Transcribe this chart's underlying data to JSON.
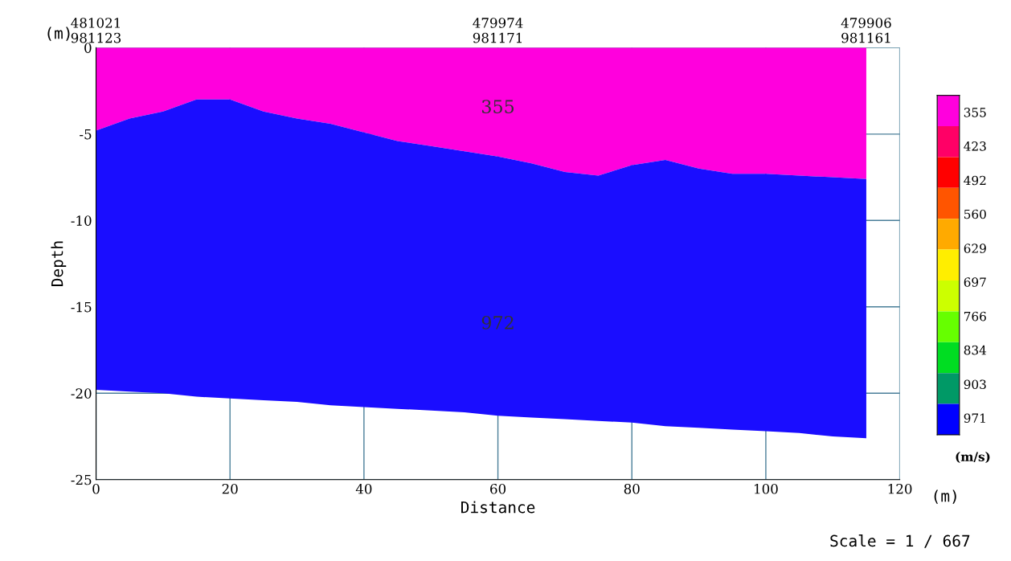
{
  "chart_data": {
    "type": "area",
    "stacked": true,
    "xlabel": "Distance",
    "ylabel": "Depth",
    "clabel": "(m/s)",
    "x": [
      0,
      5,
      10,
      15,
      20,
      25,
      30,
      35,
      40,
      45,
      50,
      55,
      60,
      65,
      70,
      75,
      80,
      85,
      90,
      95,
      100,
      105,
      110,
      115
    ],
    "series": [
      {
        "color": "#ff00dd",
        "values": [
          -4.8,
          -4.1,
          -3.7,
          -3.0,
          -3.0,
          -3.7,
          -4.1,
          -4.4,
          -4.9,
          -5.4,
          -5.7,
          -6.0,
          -6.3,
          -6.7,
          -7.2,
          -7.4,
          -6.8,
          -6.5,
          -7.0,
          -7.3,
          -7.3,
          -7.4,
          -7.5,
          -7.6
        ]
      },
      {
        "color": "#1a0dff",
        "values": [
          -15.0,
          -15.8,
          -16.3,
          -17.2,
          -17.3,
          -16.7,
          -16.4,
          -16.3,
          -15.9,
          -15.5,
          -15.3,
          -15.1,
          -15.0,
          -14.7,
          -14.3,
          -14.2,
          -14.9,
          -15.4,
          -15.0,
          -14.8,
          -14.9,
          -14.9,
          -15.0,
          -15.0
        ]
      }
    ],
    "xlim": [
      0,
      120
    ],
    "xticks": [
      0,
      20,
      40,
      60,
      80,
      100,
      120
    ],
    "ylim": [
      -25,
      0
    ],
    "yticks": [
      -25,
      -20,
      -15,
      -10,
      -5,
      0
    ],
    "grid": true,
    "clim": [
      1005,
      321
    ],
    "cticks": [
      355,
      423,
      492,
      560,
      629,
      697,
      766,
      834,
      903,
      971
    ],
    "colors": [
      "#ff00dd",
      "#ff0066",
      "#ff0000",
      "#ff5500",
      "#ffaa00",
      "#ffee00",
      "#ccff00",
      "#66ff00",
      "#00dd22",
      "#009966",
      "#0000ff"
    ],
    "annotations": [
      "481021\n981123",
      "479974\n981171",
      "479906\n981161",
      "355",
      "972",
      "(m)",
      "(m)",
      "Scale = 1 / 667"
    ]
  }
}
